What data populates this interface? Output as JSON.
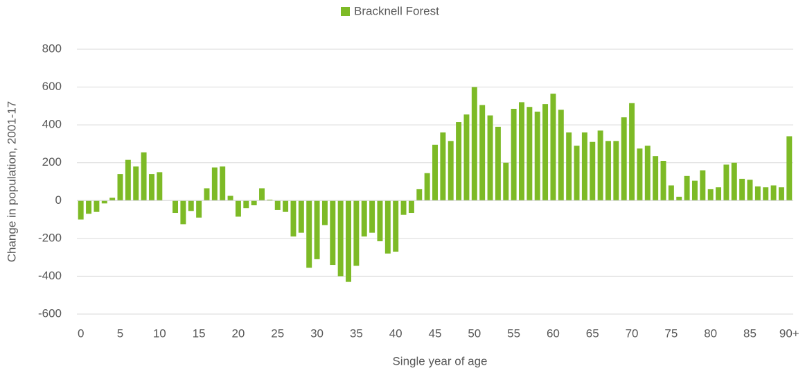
{
  "chart_data": {
    "type": "bar",
    "legend": "Bracknell Forest",
    "color": "#7dba26",
    "x_label": "Single year of age",
    "y_label": "Change in population, 2001-17",
    "categories": [
      "0",
      null,
      null,
      null,
      null,
      "5",
      null,
      null,
      null,
      null,
      "10",
      null,
      null,
      null,
      null,
      "15",
      null,
      null,
      null,
      null,
      "20",
      null,
      null,
      null,
      null,
      "25",
      null,
      null,
      null,
      null,
      "30",
      null,
      null,
      null,
      null,
      "35",
      null,
      null,
      null,
      null,
      "40",
      null,
      null,
      null,
      null,
      "45",
      null,
      null,
      null,
      null,
      "50",
      null,
      null,
      null,
      null,
      "55",
      null,
      null,
      null,
      null,
      "60",
      null,
      null,
      null,
      null,
      "65",
      null,
      null,
      null,
      null,
      "70",
      null,
      null,
      null,
      null,
      "75",
      null,
      null,
      null,
      null,
      "80",
      null,
      null,
      null,
      null,
      "85",
      null,
      null,
      null,
      null,
      "90+"
    ],
    "values": [
      -100,
      -70,
      -60,
      -15,
      15,
      140,
      215,
      180,
      255,
      140,
      150,
      0,
      -65,
      -125,
      -55,
      -90,
      65,
      175,
      180,
      25,
      -85,
      -40,
      -25,
      65,
      5,
      -50,
      -60,
      -190,
      -170,
      -355,
      -310,
      -130,
      -340,
      -400,
      -430,
      -345,
      -190,
      -170,
      -215,
      -280,
      -270,
      -75,
      -65,
      60,
      145,
      295,
      360,
      315,
      415,
      455,
      600,
      505,
      450,
      390,
      200,
      485,
      520,
      495,
      470,
      510,
      565,
      480,
      360,
      290,
      360,
      310,
      370,
      315,
      315,
      440,
      515,
      275,
      290,
      235,
      210,
      80,
      20,
      130,
      105,
      160,
      60,
      70,
      190,
      200,
      115,
      110,
      75,
      70,
      80,
      70,
      340
    ],
    "ylim": [
      -600,
      800
    ],
    "yticks": [
      -600,
      -400,
      -200,
      0,
      200,
      400,
      600,
      800
    ],
    "grid": true
  }
}
